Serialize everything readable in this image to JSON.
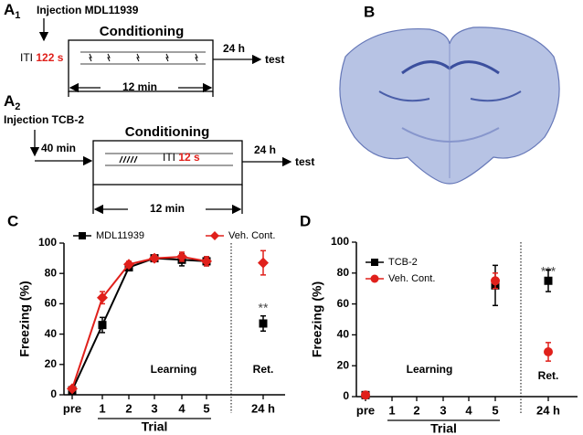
{
  "panel_a1": {
    "label": "A",
    "label_sub": "1",
    "injection": "Injection MDL11939",
    "conditioning": "Conditioning",
    "iti": "ITI",
    "iti_value": "122 s",
    "delay": "24 h",
    "test": "test",
    "duration": "12 min"
  },
  "panel_a2": {
    "label": "A",
    "label_sub": "2",
    "injection": "Injection TCB-2",
    "pre_delay": "40 min",
    "conditioning": "Conditioning",
    "iti": "ITI",
    "iti_value": "12 s",
    "delay": "24 h",
    "test": "test",
    "duration": "12 min"
  },
  "panel_b": {
    "label": "B"
  },
  "chart_data": [
    {
      "type": "line",
      "panel_label": "C",
      "y_label": "Freezing (%)",
      "x_label": "Trial",
      "learning_label": "Learning",
      "retention_label": "Ret.",
      "significance": "**",
      "categories": [
        "pre",
        "1",
        "2",
        "3",
        "4",
        "5",
        "24 h"
      ],
      "series": [
        {
          "name": "MDL11939",
          "color": "#000000",
          "marker": "square",
          "values": [
            3,
            46,
            84,
            90,
            89,
            88,
            47
          ],
          "errors": [
            1,
            5,
            2,
            2,
            4,
            3,
            5
          ]
        },
        {
          "name": "Veh. Cont.",
          "color": "#e0201b",
          "marker": "diamond",
          "values": [
            4,
            64,
            86,
            90,
            91,
            88,
            87
          ],
          "errors": [
            1,
            4,
            2,
            2,
            3,
            3,
            8
          ]
        }
      ],
      "ylim": [
        0,
        100
      ],
      "yticks": [
        0,
        20,
        40,
        60,
        80,
        100
      ],
      "legend": "top"
    },
    {
      "type": "scatter",
      "panel_label": "D",
      "y_label": "Freezing (%)",
      "x_label": "Trial",
      "learning_label": "Learning",
      "retention_label": "Ret.",
      "significance": "***",
      "categories": [
        "pre",
        "1",
        "2",
        "3",
        "4",
        "5",
        "24 h"
      ],
      "series": [
        {
          "name": "TCB-2",
          "color": "#000000",
          "marker": "square",
          "values": [
            1,
            null,
            null,
            null,
            null,
            72,
            75
          ],
          "errors": [
            1,
            null,
            null,
            null,
            null,
            13,
            7
          ]
        },
        {
          "name": "Veh. Cont.",
          "color": "#e0201b",
          "marker": "circle",
          "values": [
            1,
            null,
            null,
            null,
            null,
            75,
            29
          ],
          "errors": [
            1,
            null,
            null,
            null,
            null,
            5,
            6
          ]
        }
      ],
      "ylim": [
        0,
        100
      ],
      "yticks": [
        0,
        20,
        40,
        60,
        80,
        100
      ],
      "legend": "upper left"
    }
  ]
}
